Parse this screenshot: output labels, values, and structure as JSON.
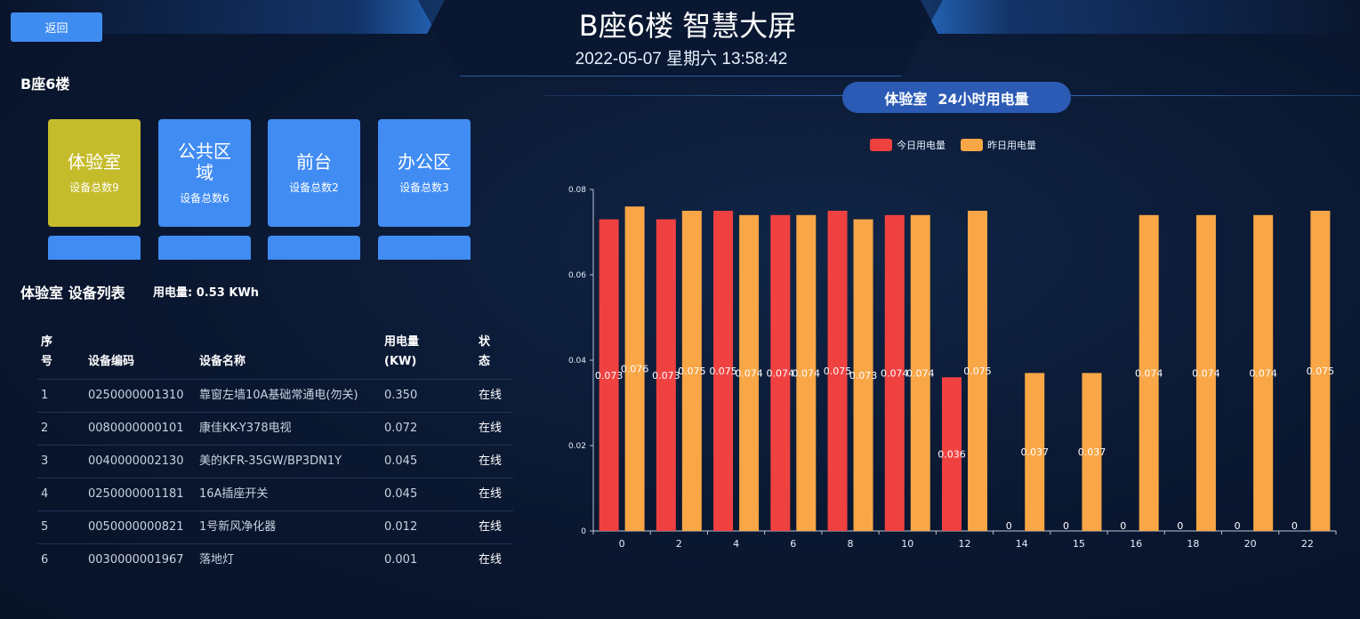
{
  "header": {
    "back_label": "返回",
    "title": "B座6楼 智慧大屏",
    "datetime": "2022-05-07 星期六 13:58:42"
  },
  "floor_label": "B座6楼",
  "rooms": [
    {
      "name": "体验室",
      "count": "设备总数9",
      "active": true
    },
    {
      "name": "公共区域",
      "count": "设备总数6",
      "active": false
    },
    {
      "name": "前台",
      "count": "设备总数2",
      "active": false
    },
    {
      "name": "办公区",
      "count": "设备总数3",
      "active": false
    }
  ],
  "device_list": {
    "title": "体验室 设备列表",
    "power_summary": "用电量: 0.53 KWh",
    "columns": [
      "序号",
      "设备编码",
      "设备名称",
      "用电量\n(KW)",
      "状态"
    ],
    "rows": [
      [
        "1",
        "0250000001310",
        "靠窗左墙10A基础常通电(勿关)",
        "0.350",
        "在线"
      ],
      [
        "2",
        "0080000000101",
        "康佳KK-Y378电视",
        "0.072",
        "在线"
      ],
      [
        "3",
        "0040000002130",
        "美的KFR-35GW/BP3DN1Y",
        "0.045",
        "在线"
      ],
      [
        "4",
        "0250000001181",
        "16A插座开关",
        "0.045",
        "在线"
      ],
      [
        "5",
        "0050000000821",
        "1号新风净化器",
        "0.012",
        "在线"
      ],
      [
        "6",
        "0030000001967",
        "落地灯",
        "0.001",
        "在线"
      ]
    ]
  },
  "chart_title": {
    "room": "体验室",
    "label": "24小时用电量"
  },
  "chart_data": {
    "type": "bar",
    "categories": [
      "0",
      "2",
      "4",
      "6",
      "8",
      "10",
      "12",
      "14",
      "15",
      "16",
      "18",
      "20",
      "22"
    ],
    "series": [
      {
        "name": "今日用电量",
        "color": "#f04141",
        "values": [
          0.073,
          0.073,
          0.075,
          0.074,
          0.075,
          0.074,
          0.036,
          0,
          0,
          0,
          0,
          0,
          0
        ]
      },
      {
        "name": "昨日用电量",
        "color": "#f8a646",
        "values": [
          0.076,
          0.075,
          0.074,
          0.074,
          0.073,
          0.074,
          0.075,
          0.037,
          0.037,
          0.074,
          0.074,
          0.074,
          0.075
        ]
      }
    ],
    "ylim": [
      0,
      0.08
    ],
    "yticks": [
      "0",
      "0.02",
      "0.04",
      "0.06",
      "0.08"
    ],
    "legend_position": "top-center",
    "grid": false
  }
}
